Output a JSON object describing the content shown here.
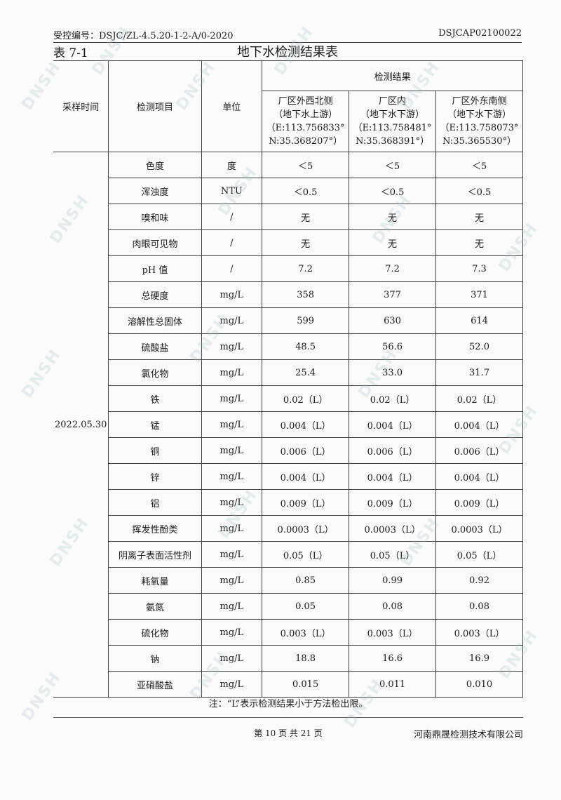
{
  "header": {
    "control_no": "受控编号：DSJC/ZL-4.5.20-1-2-A/0-2020",
    "report_no": "DSJCAP02100022"
  },
  "table_no": "表 7-1",
  "table_title": "地下水检测结果表",
  "columns": {
    "time": "采样时间",
    "item": "检测项目",
    "unit": "单位",
    "results": "检测结果",
    "sites": [
      {
        "l1": "厂区外西北侧",
        "l2": "（地下水上游）",
        "l3": "（E:113.756833°",
        "l4": "N:35.368207°）"
      },
      {
        "l1": "厂区内",
        "l2": "（地下水下游）",
        "l3": "（E:113.758481°",
        "l4": "N:35.368391°）"
      },
      {
        "l1": "厂区外东南侧",
        "l2": "（地下水下游）",
        "l3": "（E:113.758073°",
        "l4": "N:35.365530°）"
      }
    ]
  },
  "sampling_date": "2022.05.30",
  "rows": [
    {
      "item": "色度",
      "unit": "度",
      "v": [
        "＜5",
        "＜5",
        "＜5"
      ]
    },
    {
      "item": "浑浊度",
      "unit": "NTU",
      "v": [
        "＜0.5",
        "＜0.5",
        "＜0.5"
      ]
    },
    {
      "item": "嗅和味",
      "unit": "/",
      "v": [
        "无",
        "无",
        "无"
      ]
    },
    {
      "item": "肉眼可见物",
      "unit": "/",
      "v": [
        "无",
        "无",
        "无"
      ]
    },
    {
      "item": "pH 值",
      "unit": "/",
      "v": [
        "7.2",
        "7.2",
        "7.3"
      ]
    },
    {
      "item": "总硬度",
      "unit": "mg/L",
      "v": [
        "358",
        "377",
        "371"
      ]
    },
    {
      "item": "溶解性总固体",
      "unit": "mg/L",
      "v": [
        "599",
        "630",
        "614"
      ]
    },
    {
      "item": "硫酸盐",
      "unit": "mg/L",
      "v": [
        "48.5",
        "56.6",
        "52.0"
      ]
    },
    {
      "item": "氯化物",
      "unit": "mg/L",
      "v": [
        "25.4",
        "33.0",
        "31.7"
      ]
    },
    {
      "item": "铁",
      "unit": "mg/L",
      "v": [
        "0.02（L）",
        "0.02（L）",
        "0.02（L）"
      ]
    },
    {
      "item": "锰",
      "unit": "mg/L",
      "v": [
        "0.004（L）",
        "0.004（L）",
        "0.004（L）"
      ]
    },
    {
      "item": "铜",
      "unit": "mg/L",
      "v": [
        "0.006（L）",
        "0.006（L）",
        "0.006（L）"
      ]
    },
    {
      "item": "锌",
      "unit": "mg/L",
      "v": [
        "0.004（L）",
        "0.004（L）",
        "0.004（L）"
      ]
    },
    {
      "item": "铝",
      "unit": "mg/L",
      "v": [
        "0.009（L）",
        "0.009（L）",
        "0.009（L）"
      ]
    },
    {
      "item": "挥发性酚类",
      "unit": "mg/L",
      "v": [
        "0.0003（L）",
        "0.0003（L）",
        "0.0003（L）"
      ]
    },
    {
      "item": "阴离子表面活性剂",
      "unit": "mg/L",
      "v": [
        "0.05（L）",
        "0.05（L）",
        "0.05（L）"
      ]
    },
    {
      "item": "耗氧量",
      "unit": "mg/L",
      "v": [
        "0.85",
        "0.99",
        "0.92"
      ]
    },
    {
      "item": "氨氮",
      "unit": "mg/L",
      "v": [
        "0.05",
        "0.08",
        "0.08"
      ]
    },
    {
      "item": "硫化物",
      "unit": "mg/L",
      "v": [
        "0.003（L）",
        "0.003（L）",
        "0.003（L）"
      ]
    },
    {
      "item": "钠",
      "unit": "mg/L",
      "v": [
        "18.8",
        "16.6",
        "16.9"
      ]
    },
    {
      "item": "亚硝酸盐",
      "unit": "mg/L",
      "v": [
        "0.015",
        "0.011",
        "0.010"
      ]
    }
  ],
  "note": "注：“L”表示检测结果小于方法检出限。",
  "footer": {
    "page": "第 10 页 共 21 页",
    "company": "河南鼎晟检测技术有限公司"
  },
  "watermark_text": "DNSH"
}
